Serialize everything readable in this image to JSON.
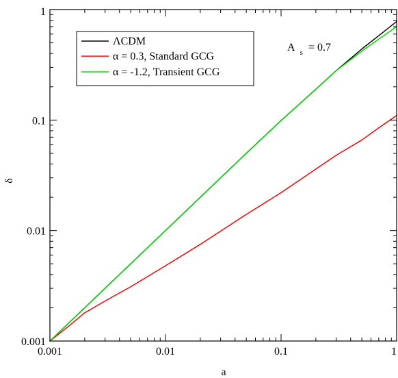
{
  "chart_data": {
    "type": "line",
    "title": "",
    "xlabel": "a",
    "ylabel": "δ",
    "x_scale": "log",
    "y_scale": "log",
    "xlim": [
      0.001,
      1
    ],
    "ylim": [
      0.001,
      1
    ],
    "x_ticks": [
      0.001,
      0.01,
      0.1,
      1
    ],
    "x_tick_labels": [
      "0.001",
      "0.01",
      "0.1",
      "1"
    ],
    "y_ticks": [
      0.001,
      0.01,
      0.1,
      1
    ],
    "y_tick_labels": [
      "0.001",
      "0.01",
      "0.1",
      "1"
    ],
    "grid": false,
    "legend_position": "top-left",
    "annotation": {
      "main": "A",
      "subscript": "s",
      "value": "= 0.7"
    },
    "series": [
      {
        "name": "ΛCDM",
        "color": "#000000",
        "x": [
          0.001,
          0.002,
          0.005,
          0.01,
          0.02,
          0.05,
          0.1,
          0.2,
          0.3,
          0.5,
          0.7,
          1.0
        ],
        "y": [
          0.001,
          0.002,
          0.005,
          0.01,
          0.02,
          0.05,
          0.099,
          0.19,
          0.28,
          0.44,
          0.58,
          0.78
        ]
      },
      {
        "name": "α = 0.3, Standard GCG",
        "color": "#ff0000",
        "x": [
          0.001,
          0.0015,
          0.002,
          0.003,
          0.005,
          0.01,
          0.02,
          0.05,
          0.1,
          0.2,
          0.3,
          0.5,
          0.7,
          1.0
        ],
        "y": [
          0.001,
          0.0014,
          0.0018,
          0.0023,
          0.0031,
          0.0048,
          0.0075,
          0.014,
          0.022,
          0.036,
          0.048,
          0.066,
          0.085,
          0.11
        ]
      },
      {
        "name": "α  = -1.2, Transient GCG",
        "color": "#00dd00",
        "x": [
          0.001,
          0.002,
          0.005,
          0.01,
          0.02,
          0.05,
          0.1,
          0.2,
          0.3,
          0.5,
          0.7,
          1.0
        ],
        "y": [
          0.001,
          0.002,
          0.005,
          0.01,
          0.02,
          0.05,
          0.099,
          0.19,
          0.28,
          0.42,
          0.54,
          0.7
        ]
      }
    ]
  }
}
